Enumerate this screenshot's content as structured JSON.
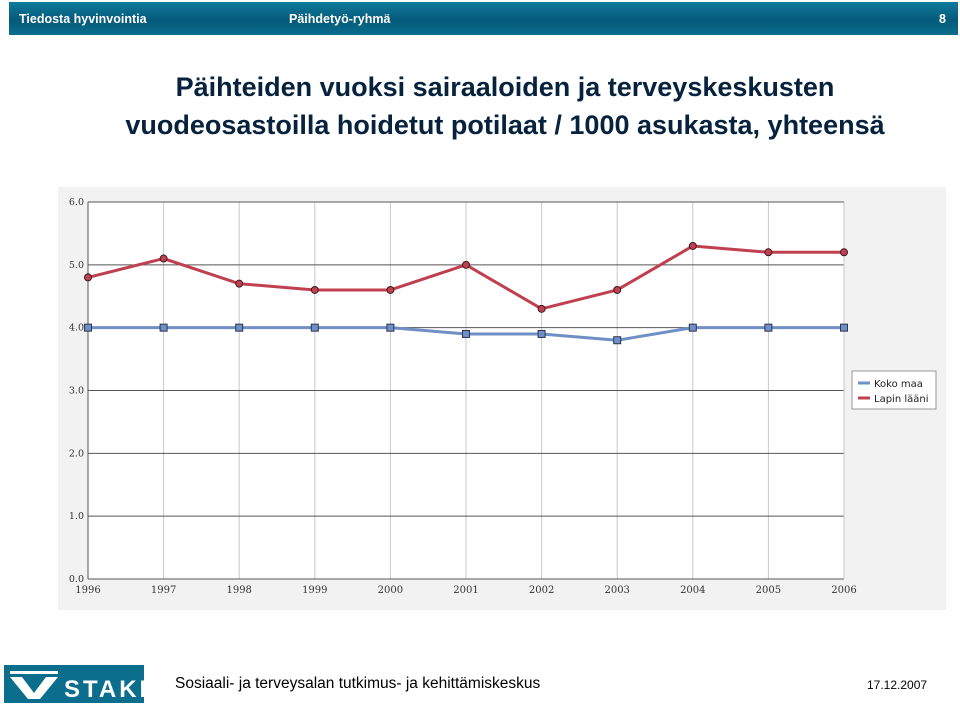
{
  "header": {
    "left_label": "Tiedosta hyvinvointia",
    "center_label": "Päihdetyö-ryhmä",
    "slide_number": "8"
  },
  "slide": {
    "title_line1": "Päihteiden vuoksi sairaaloiden ja terveyskeskusten",
    "title_line2": "vuodeosastoilla hoidetut potilaat / 1000 asukasta, yhteensä"
  },
  "chart_data": {
    "type": "line",
    "title": "",
    "xlabel": "",
    "ylabel": "",
    "categories": [
      "1996",
      "1997",
      "1998",
      "1999",
      "2000",
      "2001",
      "2002",
      "2003",
      "2004",
      "2005",
      "2006"
    ],
    "ylim": [
      0,
      6
    ],
    "yticks": [
      "0.0",
      "1.0",
      "2.0",
      "3.0",
      "4.0",
      "5.0",
      "6.0"
    ],
    "grid": true,
    "legend_position": "right",
    "series": [
      {
        "name": "Koko maa",
        "color": "#6f8fc6",
        "marker": "square",
        "values": [
          4.0,
          4.0,
          4.0,
          4.0,
          4.0,
          3.9,
          3.9,
          3.8,
          4.0,
          4.0,
          4.0
        ]
      },
      {
        "name": "Lapin lääni",
        "color": "#c0404f",
        "marker": "circle",
        "values": [
          4.8,
          5.1,
          4.7,
          4.6,
          4.6,
          5.0,
          4.3,
          4.6,
          5.3,
          5.2,
          5.2
        ]
      }
    ]
  },
  "footer": {
    "logo_text": "STAKES",
    "organization": "Sosiaali- ja terveysalan tutkimus- ja kehittämiskeskus",
    "date": "17.12.2007"
  }
}
